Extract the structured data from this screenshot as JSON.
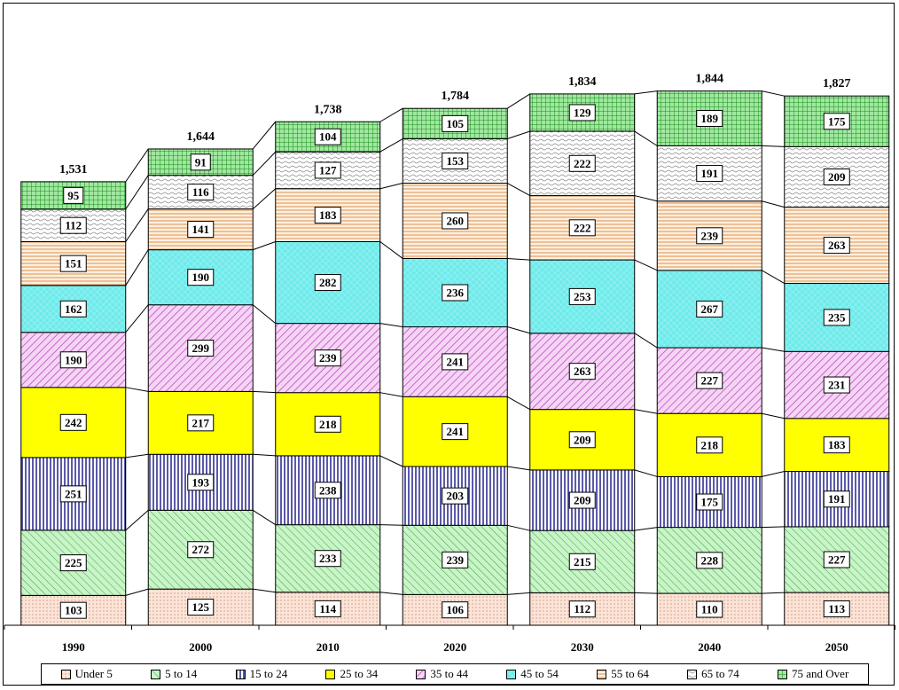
{
  "chart_data": {
    "type": "bar",
    "stacked": true,
    "categories": [
      "1990",
      "2000",
      "2010",
      "2020",
      "2030",
      "2040",
      "2050"
    ],
    "totals": [
      "1,531",
      "1,644",
      "1,738",
      "1,784",
      "1,834",
      "1,844",
      "1,827"
    ],
    "series": [
      {
        "name": "Under 5",
        "color": "#f8d8c8",
        "pattern": "dots",
        "values": [
          103,
          125,
          114,
          106,
          112,
          110,
          113
        ]
      },
      {
        "name": "5 to 14",
        "color": "#b8f0b8",
        "pattern": "diag-green",
        "values": [
          225,
          272,
          233,
          239,
          215,
          228,
          227
        ]
      },
      {
        "name": "15 to 24",
        "color": "#ffffff",
        "pattern": "vlines-navy",
        "values": [
          251,
          193,
          238,
          203,
          209,
          175,
          191
        ]
      },
      {
        "name": "25 to 34",
        "color": "#ffff00",
        "pattern": "solid",
        "values": [
          242,
          217,
          218,
          241,
          209,
          218,
          183
        ]
      },
      {
        "name": "35 to 44",
        "color": "#f0c0f0",
        "pattern": "diag-purple",
        "values": [
          190,
          299,
          239,
          241,
          263,
          227,
          231
        ]
      },
      {
        "name": "45 to 54",
        "color": "#80f0f0",
        "pattern": "crosshatch-teal",
        "values": [
          162,
          190,
          282,
          236,
          253,
          267,
          235
        ]
      },
      {
        "name": "55 to 64",
        "color": "#fce4cc",
        "pattern": "hlines-orange",
        "values": [
          151,
          141,
          183,
          260,
          222,
          239,
          263
        ]
      },
      {
        "name": "65 to 74",
        "color": "#ffffff",
        "pattern": "waves-gray",
        "values": [
          112,
          116,
          127,
          153,
          222,
          191,
          209
        ]
      },
      {
        "name": "75 and Over",
        "color": "#90e090",
        "pattern": "grid-green",
        "values": [
          95,
          91,
          104,
          105,
          129,
          189,
          175
        ]
      }
    ],
    "legend_position": "bottom",
    "grid": false,
    "ylim": [
      0,
      1950
    ]
  }
}
